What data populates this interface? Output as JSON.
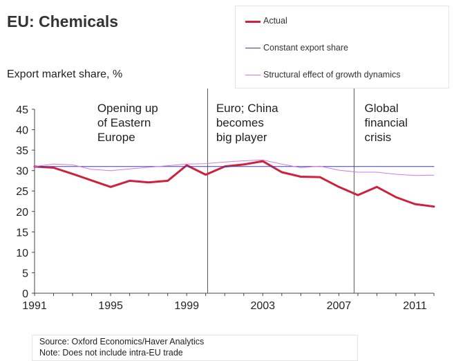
{
  "chart_data": {
    "type": "line",
    "title": "EU: Chemicals",
    "ylabel": "Export market share, %",
    "xlim": [
      1991,
      2012
    ],
    "ylim": [
      0,
      45
    ],
    "xticks": [
      "1991",
      "1995",
      "1999",
      "2003",
      "2007",
      "2011"
    ],
    "yticks": [
      "0",
      "5",
      "10",
      "15",
      "20",
      "25",
      "30",
      "35",
      "40",
      "45"
    ],
    "grid": false,
    "legend_position": "top-right",
    "series": [
      {
        "name": "Actual",
        "color": "#d0213c",
        "x": [
          1991,
          1992,
          1993,
          1994,
          1995,
          1996,
          1997,
          1998,
          1999,
          2000,
          2001,
          2002,
          2003,
          2004,
          2005,
          2006,
          2007,
          2008,
          2009,
          2010,
          2011,
          2012
        ],
        "values": [
          31,
          30.7,
          29.2,
          27.6,
          26,
          27.5,
          27.1,
          27.5,
          31.3,
          29,
          31,
          31.5,
          32.3,
          29.6,
          28.5,
          28.4,
          26,
          24,
          26,
          23.5,
          21.8,
          21.2
        ]
      },
      {
        "name": "Constant export share",
        "color": "#3d38b5",
        "x": [
          1991,
          2012
        ],
        "values": [
          31,
          31
        ]
      },
      {
        "name": "Structural effect of growth dynamics",
        "color": "#d977e6",
        "x": [
          1991,
          1992,
          1993,
          1994,
          1995,
          1996,
          1997,
          1998,
          1999,
          2000,
          2001,
          2002,
          2003,
          2004,
          2005,
          2006,
          2007,
          2008,
          2009,
          2010,
          2011,
          2012
        ],
        "values": [
          31,
          31.6,
          31.4,
          30.3,
          30,
          30.4,
          30.8,
          31.2,
          31.6,
          31.7,
          32.1,
          32.4,
          32.6,
          31.6,
          30.7,
          31.1,
          30.1,
          29.6,
          29.6,
          29.1,
          28.8,
          28.9
        ]
      }
    ],
    "periods": [
      {
        "label_lines": [
          "Opening up",
          "of Eastern",
          "Europe"
        ],
        "from": 1991,
        "to": 2000.1
      },
      {
        "label_lines": [
          "Euro; China",
          "becomes",
          "big player"
        ],
        "from": 2000.1,
        "to": 2007.8
      },
      {
        "label_lines": [
          "Global",
          "financial",
          "crisis"
        ],
        "from": 2007.8,
        "to": 2012
      }
    ],
    "period_dividers": [
      2000.1,
      2007.8
    ]
  },
  "footer": {
    "source": "Source: Oxford Economics/Haver Analytics",
    "note": "Note: Does not include intra-EU trade"
  }
}
